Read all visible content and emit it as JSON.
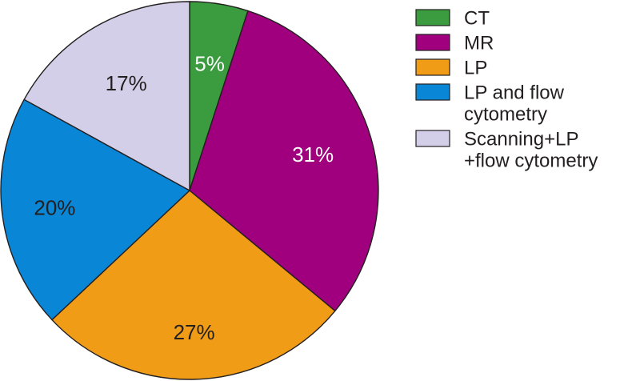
{
  "chart_data": {
    "type": "pie",
    "start_angle_deg": 0,
    "direction": "clockwise",
    "slices": [
      {
        "label": "CT",
        "value": 5,
        "display": "5%",
        "color": "#3a9b3f",
        "label_color": "#ffffff"
      },
      {
        "label": "MR",
        "value": 31,
        "display": "31%",
        "color": "#a0007d",
        "label_color": "#ffffff"
      },
      {
        "label": "LP",
        "value": 27,
        "display": "27%",
        "color": "#f09c16",
        "label_color": "#231f20"
      },
      {
        "label": "LP and flow cytometry",
        "legend_lines": [
          "LP and flow",
          "cytometry"
        ],
        "value": 20,
        "display": "20%",
        "color": "#0a86d6",
        "label_color": "#231f20"
      },
      {
        "label": "Scanning+LP+flow cytometry",
        "legend_lines": [
          "Scanning+LP",
          "+flow cytometry"
        ],
        "value": 17,
        "display": "17%",
        "color": "#d4cfe8",
        "label_color": "#231f20"
      }
    ],
    "legend_position": "right",
    "edge_color": "#231f20"
  }
}
